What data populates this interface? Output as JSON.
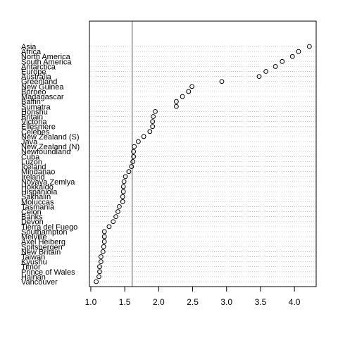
{
  "chart_data": {
    "type": "scatter",
    "plot_style": "dotchart",
    "title": "",
    "xlabel": "",
    "ylabel": "",
    "xlim": [
      0.98,
      4.32
    ],
    "x_ticks": [
      "1.0",
      "1.5",
      "2.0",
      "2.5",
      "3.0",
      "3.5",
      "4.0"
    ],
    "x_tick_values": [
      1.0,
      1.5,
      2.0,
      2.5,
      3.0,
      3.5,
      4.0
    ],
    "grid": "dotted horizontal lines",
    "reference_line_x": 1.61,
    "categories": [
      "Asia",
      "Africa",
      "North America",
      "South America",
      "Antarctica",
      "Europe",
      "Australia",
      "Greenland",
      "New Guinea",
      "Borneo",
      "Madagascar",
      "Baffin",
      "Sumatra",
      "Honshu",
      "Britain",
      "Victoria",
      "Ellesmere",
      "Celebes",
      "New Zealand (S)",
      "Java",
      "New Zealand (N)",
      "Newfoundland",
      "Cuba",
      "Luzon",
      "Iceland",
      "Mindanao",
      "Ireland",
      "Novaya Zemlya",
      "Hokkaido",
      "Hispaniola",
      "Sakhalin",
      "Moluccas",
      "Tasmania",
      "Celon",
      "Banks",
      "Devon",
      "Tierra del Fuego",
      "Southampton",
      "Melville",
      "Axel Heiberg",
      "Spitsbergen",
      "New Britain",
      "Taiwan",
      "Kyushu",
      "Timor",
      "Prince of Wales",
      "Hainan",
      "Vancouver"
    ],
    "values": [
      4.22,
      4.06,
      3.97,
      3.82,
      3.72,
      3.58,
      3.48,
      2.93,
      2.49,
      2.44,
      2.35,
      2.26,
      2.26,
      1.95,
      1.92,
      1.91,
      1.91,
      1.87,
      1.78,
      1.7,
      1.64,
      1.63,
      1.63,
      1.62,
      1.6,
      1.56,
      1.51,
      1.49,
      1.48,
      1.48,
      1.47,
      1.47,
      1.42,
      1.4,
      1.37,
      1.33,
      1.27,
      1.2,
      1.2,
      1.2,
      1.19,
      1.18,
      1.15,
      1.15,
      1.13,
      1.13,
      1.12,
      1.08
    ],
    "colors": {
      "points": "#000000",
      "grid": "#bebebe",
      "reference_line": "#555555"
    }
  }
}
